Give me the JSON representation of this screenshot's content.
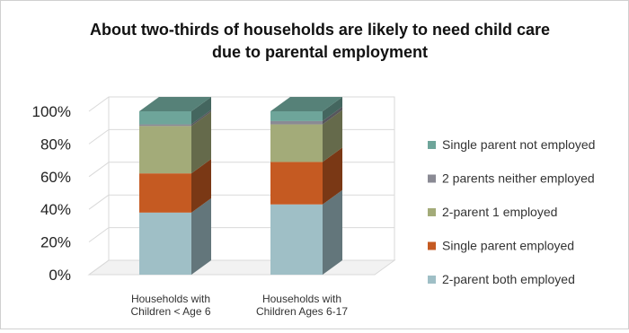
{
  "chart_data": {
    "type": "bar",
    "stacked": true,
    "three_d": true,
    "title_lines": [
      "About  two-thirds of households are likely to need child care",
      "due to parental employment"
    ],
    "categories": [
      [
        "Households with",
        "Children < Age 6"
      ],
      [
        "Households with",
        "Children Ages 6-17"
      ]
    ],
    "y_ticks": [
      "0%",
      "20%",
      "40%",
      "60%",
      "80%",
      "100%"
    ],
    "ylim": [
      0,
      100
    ],
    "legend_position": "right",
    "series": [
      {
        "name": "2-parent both employed",
        "color": "#9fbfc6",
        "values": [
          38,
          43
        ]
      },
      {
        "name": "Single parent employed",
        "color": "#c55a22",
        "values": [
          24,
          26
        ]
      },
      {
        "name": "2-parent 1 employed",
        "color": "#a3ab79",
        "values": [
          29,
          23
        ]
      },
      {
        "name": "2 parents neither employed",
        "color": "#8a8a94",
        "values": [
          1,
          2
        ]
      },
      {
        "name": "Single parent not employed",
        "color": "#6ea59a",
        "values": [
          8,
          6
        ]
      }
    ],
    "legend_order": [
      4,
      3,
      2,
      1,
      0
    ]
  }
}
